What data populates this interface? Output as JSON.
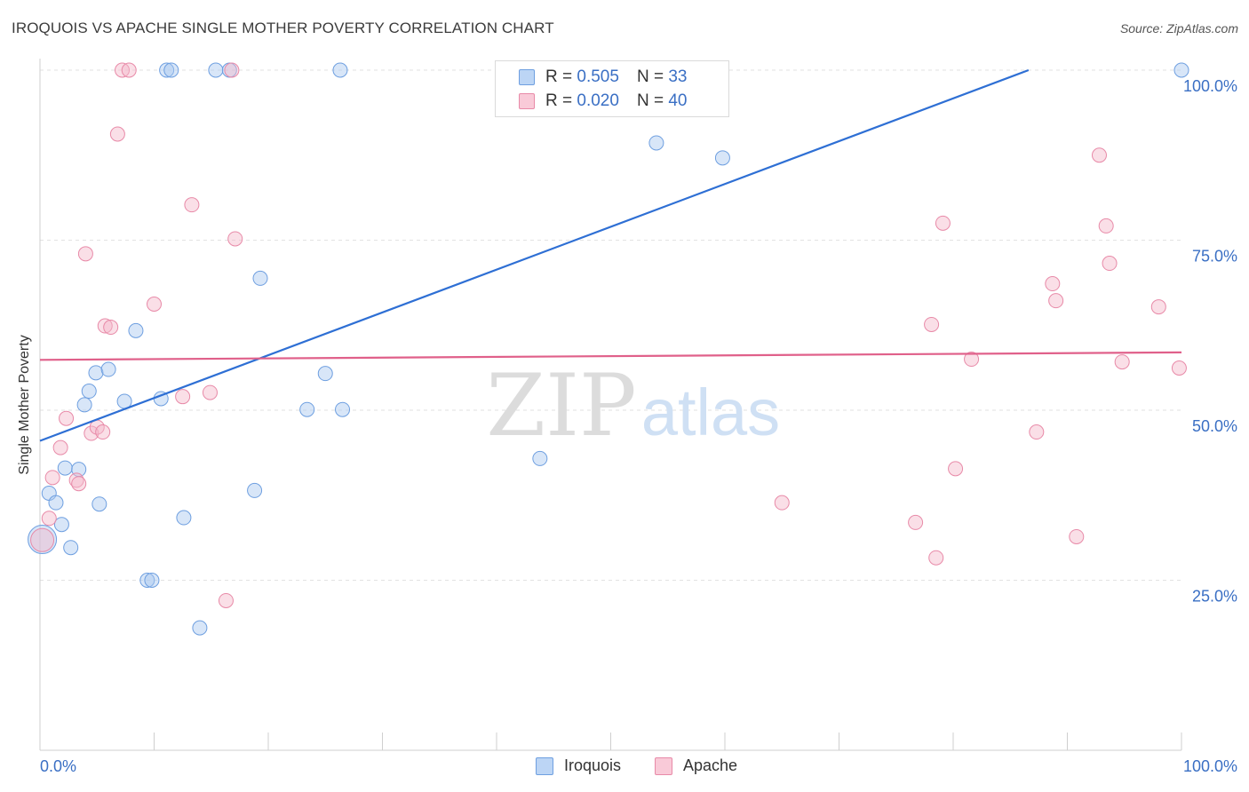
{
  "header": {
    "title": "IROQUOIS VS APACHE SINGLE MOTHER POVERTY CORRELATION CHART",
    "source": "Source: ZipAtlas.com"
  },
  "watermark": {
    "zip": "ZIP",
    "atlas": "atlas"
  },
  "legend": {
    "rows": [
      {
        "r_label": "R = ",
        "r_value": "0.505",
        "n_label": "N = ",
        "n_value": "33",
        "color": "#a9c8f0"
      },
      {
        "r_label": "R = ",
        "r_value": "0.020",
        "n_label": "N = ",
        "n_value": "40",
        "color": "#f5b8c9"
      }
    ]
  },
  "bottom_legend": {
    "items": [
      "Iroquois",
      "Apache"
    ]
  },
  "chart_data": {
    "type": "scatter",
    "title": "IROQUOIS VS APACHE SINGLE MOTHER POVERTY CORRELATION CHART",
    "xlabel": "",
    "ylabel": "Single Mother Poverty",
    "xlim": [
      0,
      100
    ],
    "ylim": [
      0,
      100
    ],
    "x_tick_labels": [
      "0.0%",
      "100.0%"
    ],
    "y_tick_labels": [
      "100.0%",
      "75.0%",
      "50.0%",
      "25.0%"
    ],
    "y_ticks": [
      100,
      75,
      50,
      25
    ],
    "grid": true,
    "legend_position": "top-center",
    "series": [
      {
        "name": "Iroquois",
        "color": "#a9c8f0",
        "stroke": "#6e9fe0",
        "trend_color": "#2e6fd4",
        "trend": [
          [
            0,
            45.5
          ],
          [
            86.6,
            100
          ]
        ],
        "points": [
          [
            0.2,
            31
          ],
          [
            0.8,
            37.8
          ],
          [
            1.4,
            36.4
          ],
          [
            1.9,
            33.2
          ],
          [
            2.2,
            41.5
          ],
          [
            2.7,
            29.8
          ],
          [
            3.4,
            41.3
          ],
          [
            3.9,
            50.8
          ],
          [
            4.3,
            52.8
          ],
          [
            4.9,
            55.5
          ],
          [
            5.2,
            36.2
          ],
          [
            6.0,
            56
          ],
          [
            7.4,
            51.3
          ],
          [
            8.4,
            61.7
          ],
          [
            9.4,
            25
          ],
          [
            9.8,
            25
          ],
          [
            10.6,
            51.7
          ],
          [
            11.1,
            100
          ],
          [
            11.5,
            100
          ],
          [
            12.6,
            34.2
          ],
          [
            14.0,
            18
          ],
          [
            15.4,
            100
          ],
          [
            16.6,
            100
          ],
          [
            18.8,
            38.2
          ],
          [
            19.3,
            69.4
          ],
          [
            23.4,
            50.1
          ],
          [
            25.0,
            55.4
          ],
          [
            26.3,
            100
          ],
          [
            26.5,
            50.1
          ],
          [
            43.8,
            42.9
          ],
          [
            54.0,
            89.3
          ],
          [
            59.8,
            87.1
          ],
          [
            100,
            100
          ]
        ]
      },
      {
        "name": "Apache",
        "color": "#f5b8c9",
        "stroke": "#e88aa8",
        "trend_color": "#e0608a",
        "trend": [
          [
            0,
            57.4
          ],
          [
            100,
            58.5
          ]
        ],
        "points": [
          [
            0.2,
            30.9
          ],
          [
            0.8,
            34.1
          ],
          [
            1.1,
            40.1
          ],
          [
            1.8,
            44.5
          ],
          [
            2.3,
            48.8
          ],
          [
            3.2,
            39.7
          ],
          [
            3.4,
            39.2
          ],
          [
            4.0,
            73
          ],
          [
            4.5,
            46.6
          ],
          [
            5.0,
            47.5
          ],
          [
            5.5,
            46.8
          ],
          [
            5.7,
            62.4
          ],
          [
            6.2,
            62.2
          ],
          [
            7.2,
            100
          ],
          [
            7.8,
            100
          ],
          [
            6.8,
            90.6
          ],
          [
            10.0,
            65.6
          ],
          [
            12.5,
            52
          ],
          [
            13.3,
            80.2
          ],
          [
            14.9,
            52.6
          ],
          [
            16.3,
            22
          ],
          [
            16.8,
            100
          ],
          [
            17.1,
            75.2
          ],
          [
            65.0,
            36.4
          ],
          [
            76.7,
            33.5
          ],
          [
            78.1,
            62.6
          ],
          [
            78.5,
            28.3
          ],
          [
            79.1,
            77.5
          ],
          [
            80.2,
            41.4
          ],
          [
            81.6,
            57.5
          ],
          [
            87.3,
            46.8
          ],
          [
            88.7,
            68.6
          ],
          [
            89.0,
            66.1
          ],
          [
            90.8,
            31.4
          ],
          [
            92.8,
            87.5
          ],
          [
            93.4,
            77.1
          ],
          [
            93.7,
            71.6
          ],
          [
            94.8,
            57.1
          ],
          [
            98.0,
            65.2
          ],
          [
            99.8,
            56.2
          ]
        ]
      }
    ]
  }
}
